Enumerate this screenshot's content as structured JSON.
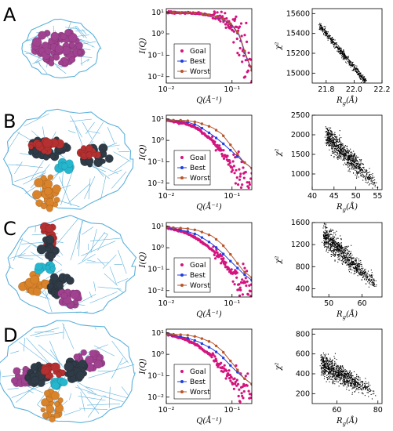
{
  "colors": {
    "goal": "#d4147e",
    "best": "#1f3fe0",
    "worst": "#b9542a",
    "mesh": "#4aa8d8",
    "protein_purple": "#a0428f",
    "protein_dark": "#2f3b46",
    "protein_red": "#b53030",
    "protein_orange": "#d9832b",
    "linker_cyan": "#26b7cf",
    "scatter": "#000000"
  },
  "rows": [
    {
      "letter": "A",
      "model_image": {
        "icon": "envelope-mesh-with-protein-model"
      },
      "saxs": {
        "xlabel": "Q(Å⁻¹)",
        "ylabel": "I(Q)",
        "xticks": [
          "10⁻²",
          "10⁻¹"
        ],
        "yticks": [
          "10¹",
          "10⁰",
          "10⁻¹",
          "10⁻²"
        ],
        "legend": [
          "Goal",
          "Best",
          "Worst"
        ]
      },
      "scatter": {
        "xlabel": "R_g(Å)",
        "ylabel": "χ²",
        "xticks": [
          "21.8",
          "22.0",
          "22.2"
        ],
        "yticks": [
          "15600",
          "15400",
          "15200",
          "15000"
        ]
      }
    },
    {
      "letter": "B",
      "model_image": {
        "icon": "envelope-mesh-with-protein-model"
      },
      "saxs": {
        "xlabel": "Q(Å⁻¹)",
        "ylabel": "I(Q)",
        "xticks": [
          "10⁻²",
          "10⁻¹"
        ],
        "yticks": [
          "10¹",
          "10⁰",
          "10⁻¹",
          "10⁻²"
        ],
        "legend": [
          "Goal",
          "Best",
          "Worst"
        ]
      },
      "scatter": {
        "xlabel": "R_g(Å)",
        "ylabel": "χ²",
        "xticks": [
          "40",
          "45",
          "50",
          "55"
        ],
        "yticks": [
          "2500",
          "2000",
          "1500",
          "1000"
        ]
      }
    },
    {
      "letter": "C",
      "model_image": {
        "icon": "envelope-mesh-with-protein-model"
      },
      "saxs": {
        "xlabel": "Q(Å⁻¹)",
        "ylabel": "I(Q)",
        "xticks": [
          "10⁻²",
          "10⁻¹"
        ],
        "yticks": [
          "10¹",
          "10⁰",
          "10⁻¹",
          "10⁻²"
        ],
        "legend": [
          "Goal",
          "Best",
          "Worst"
        ]
      },
      "scatter": {
        "xlabel": "R_g(Å)",
        "ylabel": "χ²",
        "xticks": [
          "50",
          "60"
        ],
        "yticks": [
          "1600",
          "1200",
          "800",
          "400"
        ]
      }
    },
    {
      "letter": "D",
      "model_image": {
        "icon": "envelope-mesh-with-protein-model"
      },
      "saxs": {
        "xlabel": "Q(Å⁻¹)",
        "ylabel": "I(Q)",
        "xticks": [
          "10⁻²",
          "10⁻¹"
        ],
        "yticks": [
          "10¹",
          "10⁰",
          "10⁻¹",
          "10⁻²"
        ],
        "legend": [
          "Goal",
          "Best",
          "Worst"
        ]
      },
      "scatter": {
        "xlabel": "R_g(Å)",
        "ylabel": "χ²",
        "xticks": [
          "60",
          "80"
        ],
        "yticks": [
          "800",
          "600",
          "400",
          "200"
        ]
      }
    }
  ],
  "chart_data": [
    {
      "type": "line",
      "panel": "A-saxs",
      "log_x": true,
      "log_y": true,
      "xlabel": "Q(Å⁻¹)",
      "ylabel": "I(Q)",
      "xlim": [
        0.01,
        0.2
      ],
      "ylim": [
        0.005,
        15
      ],
      "series": [
        {
          "name": "Goal",
          "x": [
            0.01,
            0.02,
            0.03,
            0.05,
            0.07,
            0.1,
            0.13,
            0.16,
            0.2
          ],
          "y": [
            10,
            9.5,
            9,
            7,
            5,
            2.5,
            0.8,
            0.08,
            0.01
          ]
        },
        {
          "name": "Best",
          "x": [
            0.01,
            0.02,
            0.03,
            0.05,
            0.07,
            0.1,
            0.13,
            0.16,
            0.2
          ],
          "y": [
            10,
            9.5,
            9,
            7,
            5,
            2.5,
            0.8,
            0.1,
            0.02
          ]
        },
        {
          "name": "Worst",
          "x": [
            0.01,
            0.02,
            0.03,
            0.05,
            0.07,
            0.1,
            0.13,
            0.16,
            0.2
          ],
          "y": [
            10,
            9.6,
            9.1,
            7.2,
            5.2,
            2.7,
            0.9,
            0.12,
            0.02
          ]
        }
      ]
    },
    {
      "type": "scatter",
      "panel": "A-rg",
      "xlabel": "R_g(Å)",
      "ylabel": "χ²",
      "xlim": [
        21.7,
        22.2
      ],
      "ylim": [
        14900,
        15650
      ],
      "trend": {
        "x": [
          21.75,
          22.08
        ],
        "y": [
          15480,
          14920
        ]
      }
    },
    {
      "type": "line",
      "panel": "B-saxs",
      "log_x": true,
      "log_y": true,
      "xlabel": "Q(Å⁻¹)",
      "ylabel": "I(Q)",
      "xlim": [
        0.01,
        0.2
      ],
      "ylim": [
        0.005,
        15
      ],
      "series": [
        {
          "name": "Goal",
          "x": [
            0.01,
            0.02,
            0.03,
            0.05,
            0.07,
            0.1,
            0.15,
            0.2
          ],
          "y": [
            9,
            6,
            3.5,
            1,
            0.3,
            0.07,
            0.02,
            0.01
          ]
        },
        {
          "name": "Best",
          "x": [
            0.01,
            0.02,
            0.03,
            0.05,
            0.07,
            0.1,
            0.15,
            0.2
          ],
          "y": [
            9,
            7.5,
            5,
            1.8,
            0.8,
            0.3,
            0.1,
            0.05
          ]
        },
        {
          "name": "Worst",
          "x": [
            0.01,
            0.02,
            0.03,
            0.05,
            0.07,
            0.1,
            0.15,
            0.2
          ],
          "y": [
            9,
            8.5,
            7,
            4,
            2,
            0.5,
            0.1,
            0.05
          ]
        }
      ]
    },
    {
      "type": "scatter",
      "panel": "B-rg",
      "xlabel": "R_g(Å)",
      "ylabel": "χ²",
      "xlim": [
        40,
        56
      ],
      "ylim": [
        600,
        2500
      ],
      "trend": {
        "x": [
          43,
          55
        ],
        "y": [
          2000,
          700
        ]
      }
    },
    {
      "type": "line",
      "panel": "C-saxs",
      "log_x": true,
      "log_y": true,
      "xlabel": "Q(Å⁻¹)",
      "ylabel": "I(Q)",
      "xlim": [
        0.01,
        0.2
      ],
      "ylim": [
        0.005,
        15
      ],
      "series": [
        {
          "name": "Goal",
          "x": [
            0.01,
            0.02,
            0.03,
            0.05,
            0.07,
            0.1,
            0.15,
            0.2
          ],
          "y": [
            9,
            5,
            2.5,
            0.8,
            0.25,
            0.06,
            0.02,
            0.01
          ]
        },
        {
          "name": "Best",
          "x": [
            0.01,
            0.02,
            0.03,
            0.05,
            0.07,
            0.1,
            0.15,
            0.2
          ],
          "y": [
            9,
            6,
            4,
            1.5,
            0.6,
            0.2,
            0.06,
            0.03
          ]
        },
        {
          "name": "Worst",
          "x": [
            0.01,
            0.02,
            0.03,
            0.05,
            0.07,
            0.1,
            0.15,
            0.2
          ],
          "y": [
            9,
            8,
            6.5,
            3.5,
            1.5,
            0.4,
            0.08,
            0.04
          ]
        }
      ]
    },
    {
      "type": "scatter",
      "panel": "C-rg",
      "xlabel": "R_g(Å)",
      "ylabel": "χ²",
      "xlim": [
        45,
        66
      ],
      "ylim": [
        250,
        1600
      ],
      "trend": {
        "x": [
          48,
          65
        ],
        "y": [
          1400,
          420
        ]
      }
    },
    {
      "type": "line",
      "panel": "D-saxs",
      "log_x": true,
      "log_y": true,
      "xlabel": "Q(Å⁻¹)",
      "ylabel": "I(Q)",
      "xlim": [
        0.01,
        0.2
      ],
      "ylim": [
        0.005,
        15
      ],
      "series": [
        {
          "name": "Goal",
          "x": [
            0.01,
            0.02,
            0.03,
            0.05,
            0.07,
            0.1,
            0.15,
            0.2
          ],
          "y": [
            9,
            5,
            2.5,
            0.8,
            0.25,
            0.07,
            0.02,
            0.01
          ]
        },
        {
          "name": "Best",
          "x": [
            0.01,
            0.02,
            0.03,
            0.05,
            0.07,
            0.1,
            0.15,
            0.2
          ],
          "y": [
            9,
            6,
            4,
            1.8,
            0.8,
            0.25,
            0.08,
            0.04
          ]
        },
        {
          "name": "Worst",
          "x": [
            0.01,
            0.02,
            0.03,
            0.05,
            0.07,
            0.1,
            0.15,
            0.2
          ],
          "y": [
            9,
            8,
            6.5,
            3.5,
            1.5,
            0.4,
            0.08,
            0.04
          ]
        }
      ]
    },
    {
      "type": "scatter",
      "panel": "D-rg",
      "xlabel": "R_g(Å)",
      "ylabel": "χ²",
      "xlim": [
        48,
        82
      ],
      "ylim": [
        100,
        850
      ],
      "trend": {
        "x": [
          52,
          78
        ],
        "y": [
          500,
          220
        ]
      }
    }
  ]
}
